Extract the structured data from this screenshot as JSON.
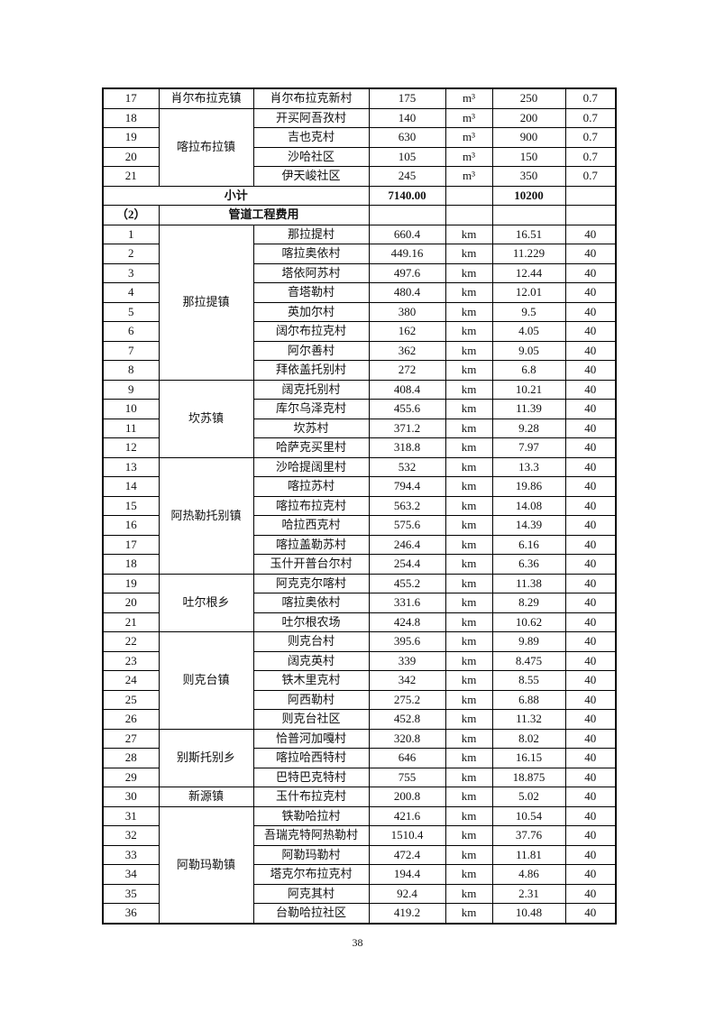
{
  "table": {
    "prev_section": [
      {
        "town": "肖尔布拉克镇",
        "rows": [
          [
            "17",
            "肖尔布拉克新村",
            "175",
            "m³",
            "250",
            "0.7"
          ]
        ]
      },
      {
        "town": "喀拉布拉镇",
        "rows": [
          [
            "18",
            "开买阿吾孜村",
            "140",
            "m³",
            "200",
            "0.7"
          ],
          [
            "19",
            "吉也克村",
            "630",
            "m³",
            "900",
            "0.7"
          ],
          [
            "20",
            "沙哈社区",
            "105",
            "m³",
            "150",
            "0.7"
          ],
          [
            "21",
            "伊天峻社区",
            "245",
            "m³",
            "350",
            "0.7"
          ]
        ]
      }
    ],
    "subtotal": {
      "label": "小计",
      "amount": "7140.00",
      "qty": "10200"
    },
    "section": {
      "number": "（2）",
      "title": "管道工程费用"
    },
    "groups": [
      {
        "town": "那拉提镇",
        "rows": [
          [
            "1",
            "那拉提村",
            "660.4",
            "km",
            "16.51",
            "40"
          ],
          [
            "2",
            "喀拉奥依村",
            "449.16",
            "km",
            "11.229",
            "40"
          ],
          [
            "3",
            "塔依阿苏村",
            "497.6",
            "km",
            "12.44",
            "40"
          ],
          [
            "4",
            "音塔勒村",
            "480.4",
            "km",
            "12.01",
            "40"
          ],
          [
            "5",
            "英加尔村",
            "380",
            "km",
            "9.5",
            "40"
          ],
          [
            "6",
            "阔尔布拉克村",
            "162",
            "km",
            "4.05",
            "40"
          ],
          [
            "7",
            "阿尔善村",
            "362",
            "km",
            "9.05",
            "40"
          ],
          [
            "8",
            "拜依盖托别村",
            "272",
            "km",
            "6.8",
            "40"
          ]
        ]
      },
      {
        "town": "坎苏镇",
        "rows": [
          [
            "9",
            "阔克托别村",
            "408.4",
            "km",
            "10.21",
            "40"
          ],
          [
            "10",
            "库尔乌泽克村",
            "455.6",
            "km",
            "11.39",
            "40"
          ],
          [
            "11",
            "坎苏村",
            "371.2",
            "km",
            "9.28",
            "40"
          ],
          [
            "12",
            "哈萨克买里村",
            "318.8",
            "km",
            "7.97",
            "40"
          ]
        ]
      },
      {
        "town": "阿热勒托别镇",
        "rows": [
          [
            "13",
            "沙哈提阔里村",
            "532",
            "km",
            "13.3",
            "40"
          ],
          [
            "14",
            "喀拉苏村",
            "794.4",
            "km",
            "19.86",
            "40"
          ],
          [
            "15",
            "喀拉布拉克村",
            "563.2",
            "km",
            "14.08",
            "40"
          ],
          [
            "16",
            "哈拉西克村",
            "575.6",
            "km",
            "14.39",
            "40"
          ],
          [
            "17",
            "喀拉盖勒苏村",
            "246.4",
            "km",
            "6.16",
            "40"
          ],
          [
            "18",
            "玉什开普台尔村",
            "254.4",
            "km",
            "6.36",
            "40"
          ]
        ]
      },
      {
        "town": "吐尔根乡",
        "rows": [
          [
            "19",
            "阿克克尔喀村",
            "455.2",
            "km",
            "11.38",
            "40"
          ],
          [
            "20",
            "喀拉奥依村",
            "331.6",
            "km",
            "8.29",
            "40"
          ],
          [
            "21",
            "吐尔根农场",
            "424.8",
            "km",
            "10.62",
            "40"
          ]
        ]
      },
      {
        "town": "则克台镇",
        "rows": [
          [
            "22",
            "则克台村",
            "395.6",
            "km",
            "9.89",
            "40"
          ],
          [
            "23",
            "阔克英村",
            "339",
            "km",
            "8.475",
            "40"
          ],
          [
            "24",
            "铁木里克村",
            "342",
            "km",
            "8.55",
            "40"
          ],
          [
            "25",
            "阿西勒村",
            "275.2",
            "km",
            "6.88",
            "40"
          ],
          [
            "26",
            "则克台社区",
            "452.8",
            "km",
            "11.32",
            "40"
          ]
        ]
      },
      {
        "town": "别斯托别乡",
        "rows": [
          [
            "27",
            "恰普河加嘎村",
            "320.8",
            "km",
            "8.02",
            "40"
          ],
          [
            "28",
            "喀拉哈西特村",
            "646",
            "km",
            "16.15",
            "40"
          ],
          [
            "29",
            "巴特巴克特村",
            "755",
            "km",
            "18.875",
            "40"
          ]
        ]
      },
      {
        "town": "新源镇",
        "rows": [
          [
            "30",
            "玉什布拉克村",
            "200.8",
            "km",
            "5.02",
            "40"
          ]
        ]
      },
      {
        "town": "阿勒玛勒镇",
        "rows": [
          [
            "31",
            "铁勒哈拉村",
            "421.6",
            "km",
            "10.54",
            "40"
          ],
          [
            "32",
            "吾瑞克特阿热勒村",
            "1510.4",
            "km",
            "37.76",
            "40"
          ],
          [
            "33",
            "阿勒玛勒村",
            "472.4",
            "km",
            "11.81",
            "40"
          ],
          [
            "34",
            "塔克尔布拉克村",
            "194.4",
            "km",
            "4.86",
            "40"
          ],
          [
            "35",
            "阿克其村",
            "92.4",
            "km",
            "2.31",
            "40"
          ],
          [
            "36",
            "台勒哈拉社区",
            "419.2",
            "km",
            "10.48",
            "40"
          ]
        ]
      }
    ]
  },
  "page_number": "38"
}
